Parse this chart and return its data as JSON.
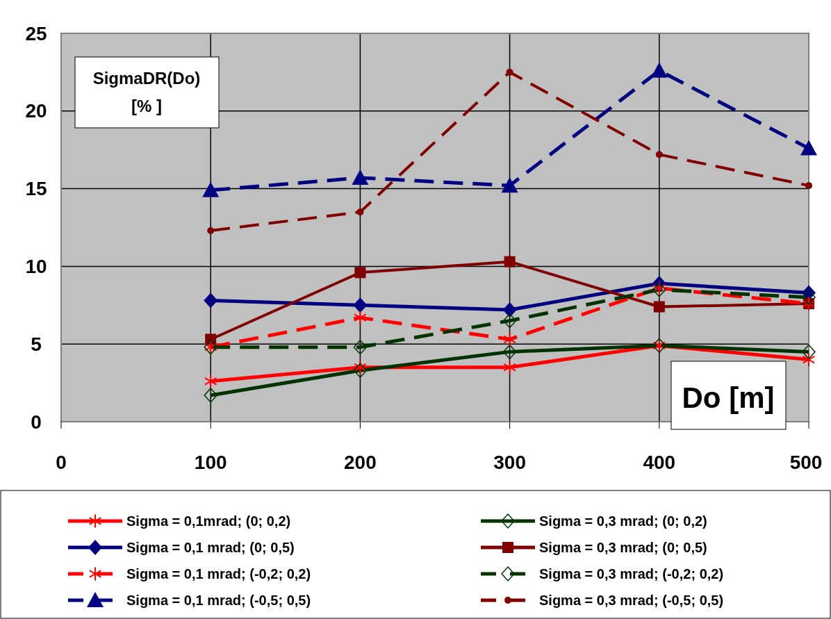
{
  "chart_data": {
    "type": "line",
    "xlabel": "Do [m]",
    "ylabel": "SigmaDR(Do)\n[% ]",
    "x": [
      100,
      200,
      300,
      400,
      500
    ],
    "xlim": [
      0,
      500
    ],
    "xticks": [
      0,
      100,
      200,
      300,
      400,
      500
    ],
    "ylim": [
      0,
      25
    ],
    "yticks": [
      0,
      5,
      10,
      15,
      20,
      25
    ],
    "grid": true,
    "legend": "bottom",
    "series": [
      {
        "name": "Sigma = 0,1mrad; (0; 0,2)",
        "color": "#ff0000",
        "marker": "cross",
        "line_style": "solid",
        "values": [
          2.6,
          3.5,
          3.5,
          4.9,
          4.0
        ]
      },
      {
        "name": "Sigma = 0,3 mrad; (0; 0,2)",
        "color": "#003300",
        "marker": "diamond-open",
        "line_style": "solid",
        "values": [
          1.7,
          3.3,
          4.5,
          4.9,
          4.5
        ]
      },
      {
        "name": "Sigma = 0,1 mrad; (0; 0,5)",
        "color": "#000080",
        "marker": "diamond",
        "line_style": "solid",
        "values": [
          7.8,
          7.5,
          7.2,
          8.9,
          8.3
        ]
      },
      {
        "name": "Sigma = 0,3 mrad; (0; 0,5)",
        "color": "#800000",
        "marker": "square",
        "line_style": "solid",
        "values": [
          5.3,
          9.6,
          10.3,
          7.4,
          7.6
        ]
      },
      {
        "name": "Sigma = 0,1 mrad; (-0,2; 0,2)",
        "color": "#ff0000",
        "marker": "cross",
        "line_style": "dashed",
        "values": [
          4.8,
          6.7,
          5.3,
          8.6,
          7.6
        ]
      },
      {
        "name": "Sigma = 0,3 mrad; (-0,2; 0,2)",
        "color": "#003300",
        "marker": "diamond-open",
        "line_style": "dashed",
        "values": [
          4.8,
          4.8,
          6.5,
          8.5,
          8.0
        ]
      },
      {
        "name": "Sigma = 0,1 mrad; (-0,5; 0,5)",
        "color": "#000080",
        "marker": "triangle",
        "line_style": "dashed",
        "values": [
          14.9,
          15.7,
          15.2,
          22.6,
          17.6
        ]
      },
      {
        "name": "Sigma = 0,3 mrad; (-0,5; 0,5)",
        "color": "#800000",
        "marker": "circle",
        "line_style": "dashed",
        "values": [
          12.3,
          13.5,
          22.5,
          17.2,
          15.2
        ]
      }
    ]
  }
}
